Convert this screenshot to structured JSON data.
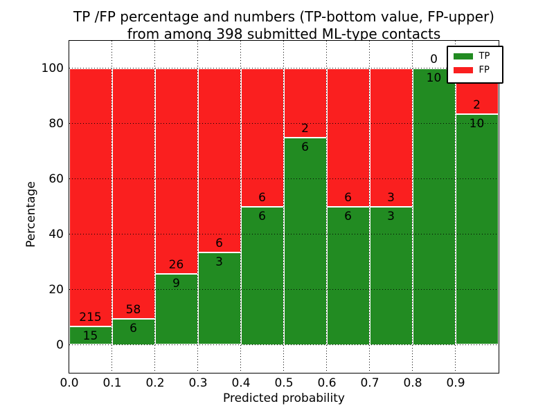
{
  "figure": {
    "title_line1": "TP /FP percentage and numbers (TP-bottom value, FP-upper)",
    "title_line2": "from among 398 submitted ML-type contacts"
  },
  "chart_data": {
    "type": "bar",
    "stacked": true,
    "normalized_to_percent": true,
    "title": "TP /FP percentage and numbers (TP-bottom value, FP-upper) from among 398 submitted ML-type contacts",
    "xlabel": "Predicted probability",
    "ylabel": "Percentage",
    "total_contacts": 398,
    "bins_start": [
      0.0,
      0.1,
      0.2,
      0.3,
      0.4,
      0.5,
      0.6,
      0.7,
      0.8,
      0.9
    ],
    "bin_width": 0.1,
    "series": [
      {
        "name": "TP",
        "color": "#228b22",
        "counts": [
          15,
          6,
          9,
          3,
          6,
          6,
          6,
          3,
          10,
          10
        ]
      },
      {
        "name": "FP",
        "color": "#fa1f1f",
        "counts": [
          215,
          58,
          26,
          6,
          6,
          2,
          6,
          3,
          0,
          2
        ]
      }
    ],
    "tp_percent_of_bin": [
      6.5,
      9.4,
      25.7,
      33.3,
      50.0,
      75.0,
      50.0,
      50.0,
      100.0,
      83.3
    ],
    "annotation_rule": "FP count printed just above the TP/FP boundary, TP count just below it",
    "x_tick_labels": [
      "0.0",
      "0.1",
      "0.2",
      "0.3",
      "0.4",
      "0.5",
      "0.6",
      "0.7",
      "0.8",
      "0.9"
    ],
    "y_ticks": [
      0,
      20,
      40,
      60,
      80,
      100
    ],
    "xlim": [
      0.0,
      1.0
    ],
    "ylim": [
      -10,
      110
    ],
    "grid": "dotted black, horizontal and vertical, drawn over bars",
    "bar_edge_color": "#ffffff",
    "legend": {
      "position": "upper right",
      "entries": [
        {
          "label": "TP",
          "color": "#228b22"
        },
        {
          "label": "FP",
          "color": "#fa1f1f"
        }
      ]
    }
  }
}
